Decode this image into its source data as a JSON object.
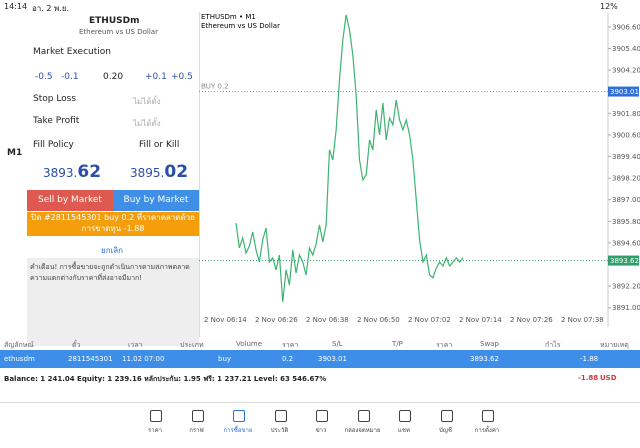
{
  "status_bar": {
    "time": "14:14",
    "date": "อา. 2 พ.ย.",
    "battery": "12%"
  },
  "toolbar": {
    "timeframe": "M1"
  },
  "order": {
    "symbol": "ETHUSDm",
    "description": "Ethereum vs US Dollar",
    "order_type": "Market Execution",
    "volume_steps": [
      "-0.5",
      "-0.1",
      "0.20",
      "+0.1",
      "+0.5"
    ],
    "stop_loss": "Stop Loss",
    "stop_loss_value": "ไม่ได้ตั้ง",
    "take_profit": "Take Profit",
    "take_profit_value": "ไม่ได้ตั้ง",
    "fill_policy": "Fill Policy",
    "fill_policy_value": "Fill or Kill",
    "bid_main": "3893.",
    "bid_small": "62",
    "ask_main": "3895.",
    "ask_small": "02",
    "sell_button": "Sell by Market",
    "buy_button": "Buy by Market",
    "close_button": "ปิด #2811545301 buy 0.2 ที่ราคาตลาดด้วยการขาดทุน -1.88",
    "cancel": "ยกเลิก",
    "warning": "คำเตือน! การซื้อขายจะถูกดำเนินการตามสภาพตลาด ความแตกต่างกับราคาที่ส่งอาจมีมาก!"
  },
  "chart_data": {
    "type": "line",
    "title": "ETHUSDm • M1",
    "subtitle": "Ethereum vs US Dollar",
    "trade_label": "BUY 0.2",
    "series": [
      {
        "color": "#3cb371",
        "values": [
          3895.71,
          3894.32,
          3894.88,
          3894.04,
          3894.43,
          3895.21,
          3894.21,
          3893.54,
          3894.77,
          3895.43,
          3893.54,
          3893.77,
          3893.1,
          3893.93,
          3891.32,
          3893.1,
          3892.27,
          3894.21,
          3892.93,
          3893.93,
          3893.54,
          3892.82,
          3894.32,
          3893.93,
          3894.54,
          3895.6,
          3894.66,
          3895.6,
          3899.77,
          3899.21,
          3900.88,
          3903.66,
          3905.88,
          3907.27,
          3906.43,
          3905.04,
          3902.82,
          3899.21,
          3898.1,
          3898.38,
          3900.32,
          3899.77,
          3901.99,
          3900.6,
          3902.38,
          3900.32,
          3901.54,
          3901.16,
          3902.54,
          3901.43,
          3900.88,
          3901.43,
          3900.6,
          3899.21,
          3896.99,
          3894.77,
          3893.54,
          3893.93,
          3892.82,
          3892.66,
          3893.21,
          3893.54,
          3893.32,
          3893.77,
          3893.32,
          3893.54,
          3893.77,
          3893.54,
          3893.77
        ]
      }
    ],
    "ylim": [
      3890.04,
      3907.43
    ],
    "yticks": [
      {
        "value": 3906.6,
        "label": "3906.60"
      },
      {
        "value": 3905.4,
        "label": "3905.40"
      },
      {
        "value": 3904.2,
        "label": "3904.20"
      },
      {
        "value": 3901.8,
        "label": "3901.80"
      },
      {
        "value": 3900.6,
        "label": "3900.60"
      },
      {
        "value": 3899.4,
        "label": "3899.40"
      },
      {
        "value": 3898.2,
        "label": "3898.20"
      },
      {
        "value": 3897,
        "label": "3897.00"
      },
      {
        "value": 3895.8,
        "label": "3895.80"
      },
      {
        "value": 3894.6,
        "label": "3894.60"
      },
      {
        "value": 3892.2,
        "label": "3892.20"
      },
      {
        "value": 3891,
        "label": "3891.00"
      }
    ],
    "price_lines": [
      {
        "value": 3903.01,
        "color": "#2f6fd6"
      },
      {
        "value": 3893.62,
        "color": "#2e9e6a"
      }
    ],
    "xtick_labels": [
      "2 Nov 06:14",
      "2 Nov 06:26",
      "2 Nov 06:38",
      "2 Nov 06:50",
      "2 Nov 07:02",
      "2 Nov 07:14",
      "2 Nov 07:26",
      "2 Nov 07:38"
    ]
  },
  "positions": {
    "headers": [
      "สัญลักษณ์",
      "ตั๋ว",
      "เวลา",
      "ประเภท",
      "Volume",
      "ราคา",
      "S/L",
      "T/P",
      "ราคา",
      "Swap",
      "กำไร",
      "หมายเหตุ"
    ],
    "row": {
      "symbol": "ethusdm",
      "ticket": "2811545301",
      "time": "11.02 07:00",
      "type": "buy",
      "volume": "0.2",
      "open_price": "3903.01",
      "price": "3893.62",
      "profit": "-1.88"
    },
    "summary": "Balance: 1 241.04 Equity: 1 239.16 หลักประกัน: 1.95 ฟรี: 1 237.21 Level: 63 546.67%",
    "total": "-1.88",
    "currency": "USD"
  },
  "nav": [
    "ราคา",
    "กราฟ",
    "การซื้อขาย",
    "ประวัติ",
    "ข่าว",
    "กล่องจดหมาย",
    "แชท",
    "บัญชี",
    "การตั้งค่า"
  ]
}
